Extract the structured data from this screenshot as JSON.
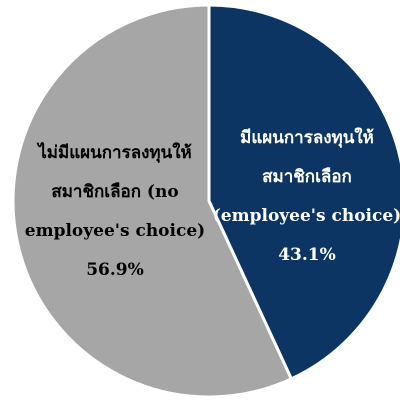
{
  "chart_data": {
    "type": "pie",
    "slices": [
      {
        "label_lines": [
          "มีแผนการลงทุนให้",
          "สมาชิกเลือก",
          "(employee's choice)"
        ],
        "value_text": "43.1%",
        "value": 43.1,
        "color": "#0d3564",
        "text_color": "#ffffff"
      },
      {
        "label_lines": [
          "ไม่มีแผนการลงทุนให้",
          "สมาชิกเลือก (no",
          "employee's choice)"
        ],
        "value_text": "56.9%",
        "value": 56.9,
        "color": "#a6a6a6",
        "text_color": "#000000"
      }
    ],
    "start_angle_deg": 0,
    "direction": "clockwise",
    "border_color": "#ffffff"
  }
}
